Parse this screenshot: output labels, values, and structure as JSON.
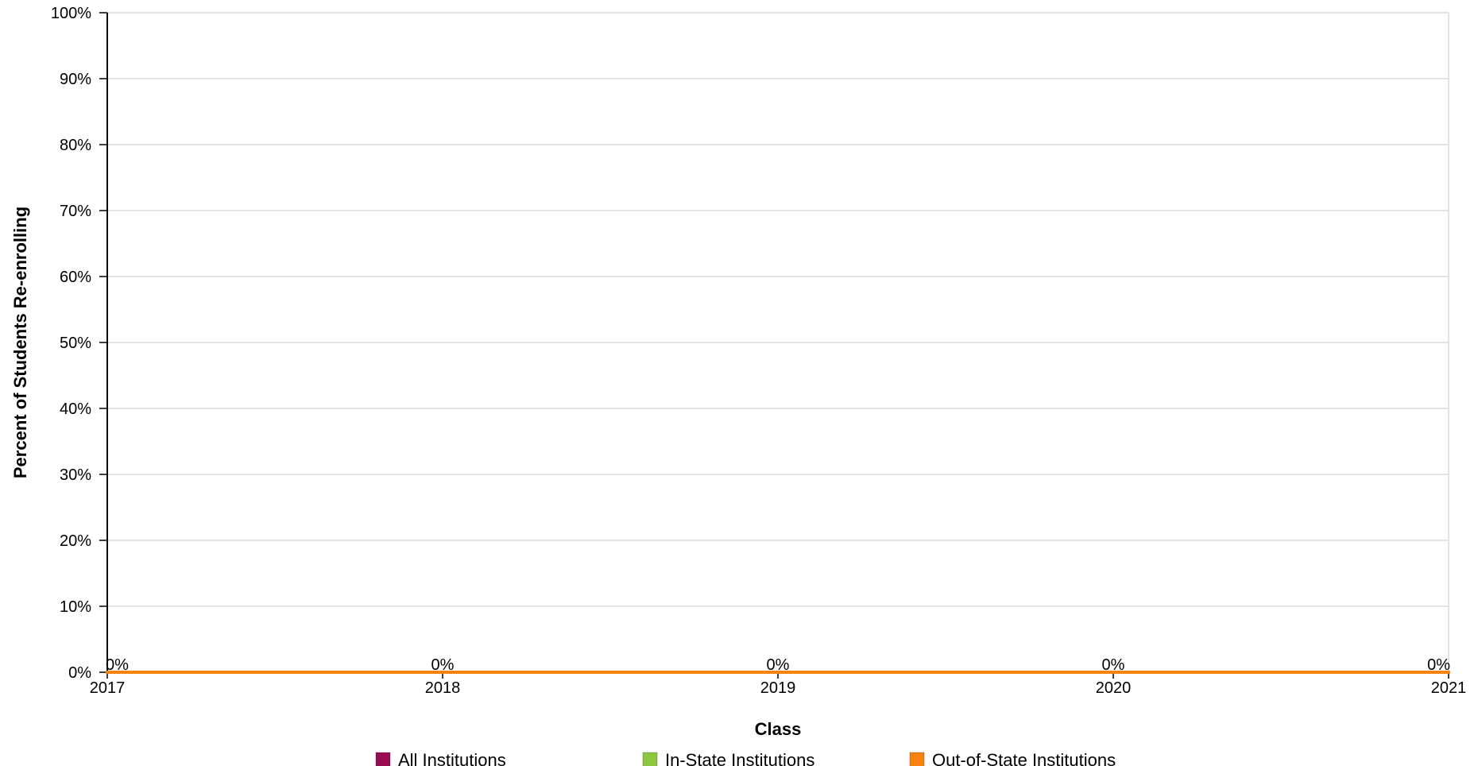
{
  "chart_data": {
    "type": "line",
    "x": [
      2017,
      2018,
      2019,
      2020,
      2021
    ],
    "x_tick_labels": [
      "2017",
      "2018",
      "2019",
      "2020",
      "2021"
    ],
    "xlabel": "Class",
    "ylabel": "Percent of Students Re-enrolling",
    "ylim": [
      0,
      100
    ],
    "y_ticks": [
      0,
      10,
      20,
      30,
      40,
      50,
      60,
      70,
      80,
      90,
      100
    ],
    "y_tick_labels": [
      "0%",
      "10%",
      "20%",
      "30%",
      "40%",
      "50%",
      "60%",
      "70%",
      "80%",
      "90%",
      "100%"
    ],
    "grid": true,
    "legend_position": "bottom",
    "series": [
      {
        "name": "All Institutions",
        "color": "#9b0a52",
        "values": [
          0,
          0,
          0,
          0,
          0
        ]
      },
      {
        "name": "In-State Institutions",
        "color": "#8dc63f",
        "values": [
          0,
          0,
          0,
          0,
          0
        ]
      },
      {
        "name": "Out-of-State Institutions",
        "color": "#f7820f",
        "values": [
          0,
          0,
          0,
          0,
          0
        ]
      }
    ],
    "data_labels": [
      "0%",
      "0%",
      "0%",
      "0%",
      "0%"
    ]
  }
}
